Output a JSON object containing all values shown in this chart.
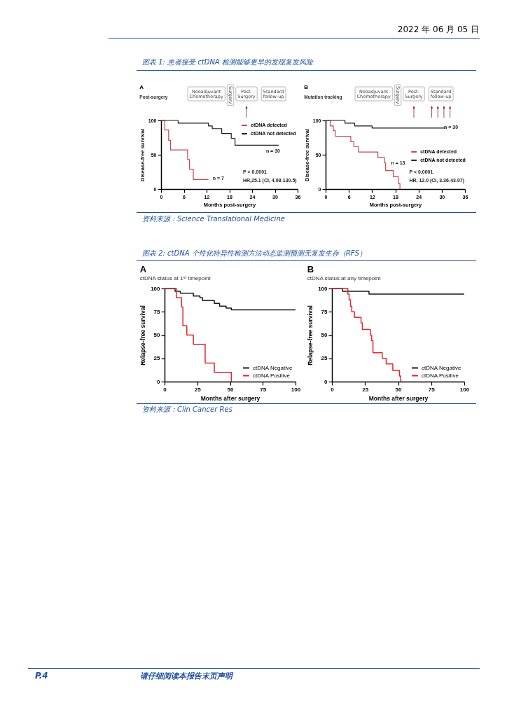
{
  "chart_data": [
    {
      "type": "step",
      "title": "A",
      "subtitle": "Post-surgery",
      "xlabel": "Months post-surgery",
      "ylabel": "Disease-free survival",
      "series": [
        {
          "name": "ctDNA detected",
          "color": "#c8454f",
          "x": [
            0,
            1,
            2,
            2.5,
            7,
            7.5,
            8.5,
            12.5
          ],
          "values": [
            100,
            86,
            71,
            57,
            43,
            29,
            14,
            14
          ]
        },
        {
          "name": "ctDNA not detected",
          "color": "#1a1a1a",
          "x": [
            0,
            4.5,
            12.5,
            13.5,
            16,
            18.5,
            19.5,
            31
          ],
          "values": [
            100,
            96,
            92,
            88,
            81,
            74,
            64,
            64
          ]
        }
      ],
      "xlim": [
        0,
        36
      ],
      "xticks": [
        0,
        6,
        12,
        18,
        24,
        30,
        36
      ],
      "ylim": [
        0,
        100
      ],
      "yticks": [
        0,
        50,
        100
      ],
      "grid": false,
      "legend": "top right",
      "annotations": [
        "Neoadjuvant Chemotherapy",
        "Surgery",
        "Post-Surgery",
        "Standard follow-up",
        "P < 0.0001",
        "HR,25.1 (CI, 4.08-130.5)",
        "n = 30",
        "n = 7"
      ]
    },
    {
      "type": "step",
      "title": "B",
      "subtitle": "Mutation tracking",
      "xlabel": "Months post-surgery",
      "ylabel": "Disease-free survival",
      "series": [
        {
          "name": "ctDNA detected",
          "color": "#c8454f",
          "x": [
            0,
            1.2,
            2,
            2.5,
            6.5,
            7.3,
            8.5,
            13.5,
            15.2,
            15.5,
            17.5,
            18.8,
            19.2,
            19.3
          ],
          "values": [
            100,
            92,
            85,
            77,
            69,
            62,
            54,
            46,
            38,
            27,
            18,
            8,
            0,
            0
          ]
        },
        {
          "name": "ctDNA not detected",
          "color": "#1a1a1a",
          "x": [
            0,
            5,
            7.5,
            12,
            31
          ],
          "values": [
            100,
            96,
            92,
            89,
            89
          ]
        }
      ],
      "xlim": [
        0,
        36
      ],
      "xticks": [
        0,
        6,
        12,
        18,
        24,
        30,
        36
      ],
      "ylim": [
        0,
        100
      ],
      "yticks": [
        0,
        50,
        100
      ],
      "grid": false,
      "legend": "right",
      "annotations": [
        "Neoadjuvant Chemotherapy",
        "Surgery",
        "Post-Surgery",
        "Standard follow-up",
        "P < 0.0001",
        "HR, 12.0 (CI, 3.36-43.07)",
        "n = 30",
        "n = 13"
      ]
    },
    {
      "type": "step",
      "title": "A",
      "subtitle": "ctDNA status at 1ˢᵗ timepoint",
      "xlabel": "Months after surgery",
      "ylabel": "Relapse-free survival",
      "series": [
        {
          "name": "ctDNA Negative",
          "color": "#1a1a1a",
          "x": [
            0,
            8,
            12,
            22,
            27,
            29,
            38,
            42,
            47,
            51,
            100
          ],
          "values": [
            100,
            97,
            95,
            92,
            90,
            87,
            84,
            81,
            79,
            77,
            77
          ]
        },
        {
          "name": "ctDNA Positive",
          "color": "#e0282e",
          "x": [
            0,
            9,
            13,
            14,
            17,
            22,
            31,
            38,
            51
          ],
          "values": [
            100,
            90,
            80,
            60,
            50,
            40,
            20,
            10,
            0
          ]
        }
      ],
      "xlim": [
        0,
        100
      ],
      "xticks": [
        0,
        25,
        50,
        75,
        100
      ],
      "ylim": [
        0,
        100
      ],
      "yticks": [
        0,
        25,
        50,
        75,
        100
      ],
      "grid": false,
      "legend": "bottom right"
    },
    {
      "type": "step",
      "title": "B",
      "subtitle": "ctDNA status at any timepoint",
      "xlabel": "Months after surgery",
      "ylabel": "Relapse-free survival",
      "series": [
        {
          "name": "ctDNA Negative",
          "color": "#1a1a1a",
          "x": [
            0,
            8,
            28,
            100
          ],
          "values": [
            100,
            97,
            94,
            94
          ]
        },
        {
          "name": "ctDNA Positive",
          "color": "#e0282e",
          "x": [
            0,
            12,
            13,
            14,
            15,
            17,
            22,
            23,
            29,
            30,
            31,
            38,
            41,
            46,
            51,
            52
          ],
          "values": [
            100,
            94,
            88,
            81,
            75,
            69,
            63,
            56,
            50,
            44,
            31,
            25,
            19,
            12,
            6,
            0
          ]
        }
      ],
      "xlim": [
        0,
        100
      ],
      "xticks": [
        0,
        25,
        50,
        75,
        100
      ],
      "ylim": [
        0,
        100
      ],
      "yticks": [
        0,
        25,
        50,
        75,
        100
      ],
      "grid": false,
      "legend": "bottom right"
    },
    {
      "type": "other",
      "annotations": [
        "2022 年 06 月 05 日",
        "图表 1: 患者接受 ctDNA 检测能够更早的发现复发风险",
        "资料来源：Science Translational Medicine",
        "图表 2: ctDNA 个性化特异性检测方法动态监测预测无复发生存（RFS）",
        "资料来源：Clin Cancer Res",
        "P.4",
        "请仔细阅读本报告末页声明"
      ]
    }
  ]
}
